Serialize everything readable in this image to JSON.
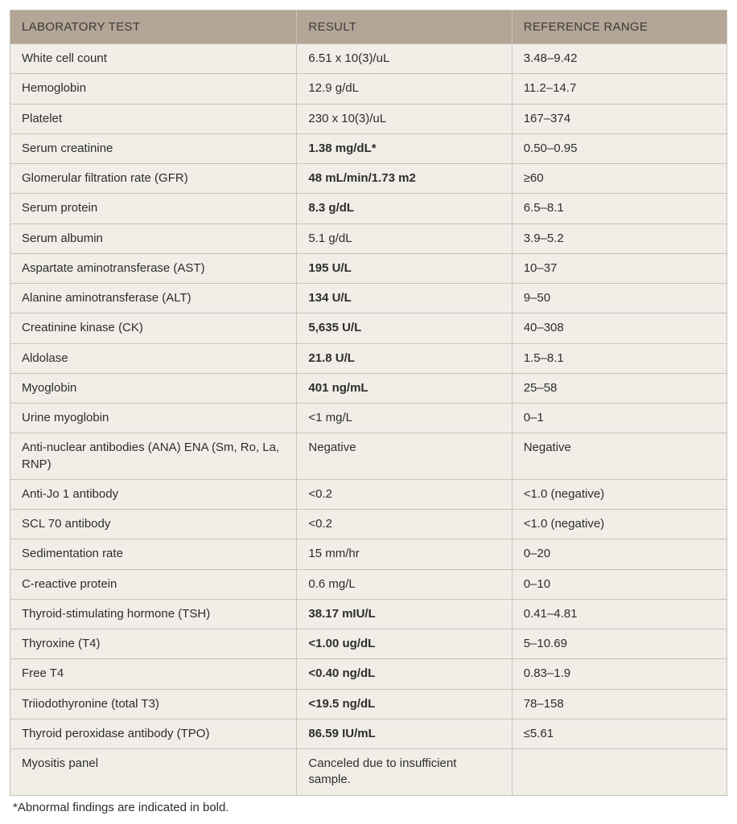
{
  "table": {
    "headers": {
      "test": "LABORATORY TEST",
      "result": "RESULT",
      "ref": "REFERENCE RANGE"
    },
    "rows": [
      {
        "test": "White cell count",
        "result": "6.51 x 10(3)/uL",
        "ref": "3.48–9.42",
        "bold_result": false
      },
      {
        "test": "Hemoglobin",
        "result": "12.9 g/dL",
        "ref": "11.2–14.7",
        "bold_result": false
      },
      {
        "test": "Platelet",
        "result": "230 x 10(3)/uL",
        "ref": "167–374",
        "bold_result": false
      },
      {
        "test": "Serum creatinine",
        "result": "1.38 mg/dL*",
        "ref": "0.50–0.95",
        "bold_result": true
      },
      {
        "test": "Glomerular filtration rate (GFR)",
        "result": "48 mL/min/1.73 m2",
        "ref": "≥60",
        "bold_result": true
      },
      {
        "test": "Serum protein",
        "result": "8.3 g/dL",
        "ref": "6.5–8.1",
        "bold_result": true
      },
      {
        "test": "Serum albumin",
        "result": "5.1 g/dL",
        "ref": "3.9–5.2",
        "bold_result": false
      },
      {
        "test": "Aspartate aminotransferase (AST)",
        "result": "195 U/L",
        "ref": "10–37",
        "bold_result": true
      },
      {
        "test": "Alanine aminotransferase (ALT)",
        "result": "134 U/L",
        "ref": "9–50",
        "bold_result": true
      },
      {
        "test": "Creatinine kinase (CK)",
        "result": "5,635 U/L",
        "ref": "40–308",
        "bold_result": true
      },
      {
        "test": "Aldolase",
        "result": "21.8 U/L",
        "ref": "1.5–8.1",
        "bold_result": true
      },
      {
        "test": "Myoglobin",
        "result": "401 ng/mL",
        "ref": "25–58",
        "bold_result": true
      },
      {
        "test": "Urine myoglobin",
        "result": "<1 mg/L",
        "ref": "0–1",
        "bold_result": false
      },
      {
        "test": "Anti-nuclear antibodies (ANA) ENA (Sm, Ro, La, RNP)",
        "result": "Negative",
        "ref": "Negative",
        "bold_result": false
      },
      {
        "test": "Anti-Jo 1 antibody",
        "result": "<0.2",
        "ref": "<1.0 (negative)",
        "bold_result": false
      },
      {
        "test": "SCL 70 antibody",
        "result": "<0.2",
        "ref": "<1.0 (negative)",
        "bold_result": false
      },
      {
        "test": "Sedimentation rate",
        "result": "15 mm/hr",
        "ref": "0–20",
        "bold_result": false
      },
      {
        "test": "C-reactive protein",
        "result": "0.6 mg/L",
        "ref": "0–10",
        "bold_result": false
      },
      {
        "test": "Thyroid-stimulating hormone (TSH)",
        "result": "38.17 mIU/L",
        "ref": "0.41–4.81",
        "bold_result": true
      },
      {
        "test": "Thyroxine (T4)",
        "result": "<1.00 ug/dL",
        "ref": "5–10.69",
        "bold_result": true
      },
      {
        "test": "Free T4",
        "result": "<0.40 ng/dL",
        "ref": "0.83–1.9",
        "bold_result": true
      },
      {
        "test": "Triiodothyronine (total T3)",
        "result": "<19.5 ng/dL",
        "ref": "78–158",
        "bold_result": true
      },
      {
        "test": "Thyroid peroxidase antibody (TPO)",
        "result": "86.59 IU/mL",
        "ref": "≤5.61",
        "bold_result": true
      },
      {
        "test": "Myositis panel",
        "result": "Canceled due to insufficient sample.",
        "ref": "",
        "bold_result": false
      }
    ],
    "footnote": "*Abnormal findings are indicated in bold.",
    "styling": {
      "header_bg": "#b4a597",
      "body_bg": "#f1eee8",
      "border_color": "#c8c3ba",
      "text_color": "#2d2d2d",
      "font_size_pt": 11,
      "col_widths_pct": [
        40,
        30,
        30
      ]
    }
  }
}
